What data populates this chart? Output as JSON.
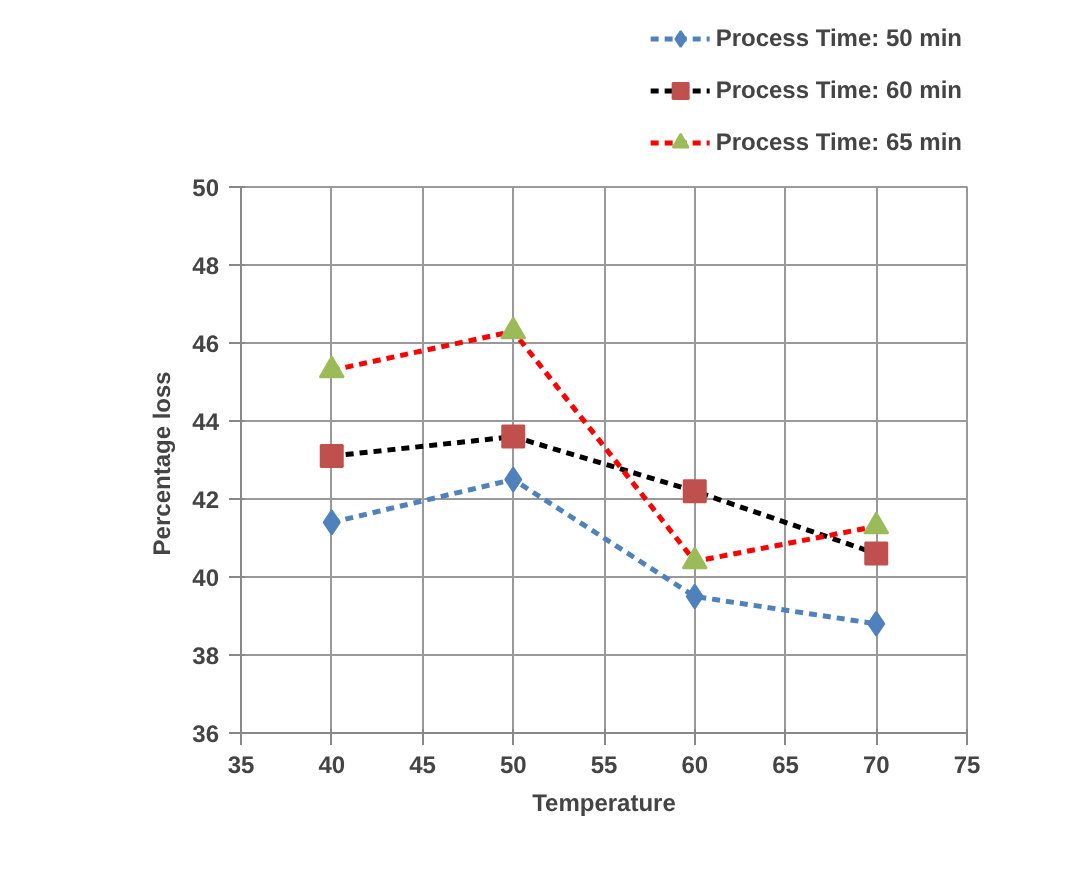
{
  "chart_data": {
    "type": "line",
    "xlabel": "Temperature",
    "ylabel": "Percentage  loss",
    "x": [
      40,
      50,
      60,
      70
    ],
    "xlim": [
      35,
      75
    ],
    "xticks": [
      35,
      40,
      45,
      50,
      55,
      60,
      65,
      70,
      75
    ],
    "ylim": [
      36,
      50
    ],
    "yticks": [
      36,
      38,
      40,
      42,
      44,
      46,
      48,
      50
    ],
    "grid": true,
    "legend": "top right",
    "line_style": "dashed",
    "series": [
      {
        "name": "Process Time: 50 min",
        "color": "#4f81bd",
        "marker": "diamond",
        "values": [
          41.4,
          42.5,
          39.5,
          38.8
        ]
      },
      {
        "name": "Process Time: 60 min",
        "color": "#000000",
        "marker": "square",
        "values": [
          43.1,
          43.6,
          42.2,
          40.6
        ]
      },
      {
        "name": "Process Time: 65 min",
        "color": "#ff0000",
        "marker": "triangle",
        "values": [
          45.3,
          46.3,
          40.4,
          41.3
        ]
      }
    ]
  }
}
